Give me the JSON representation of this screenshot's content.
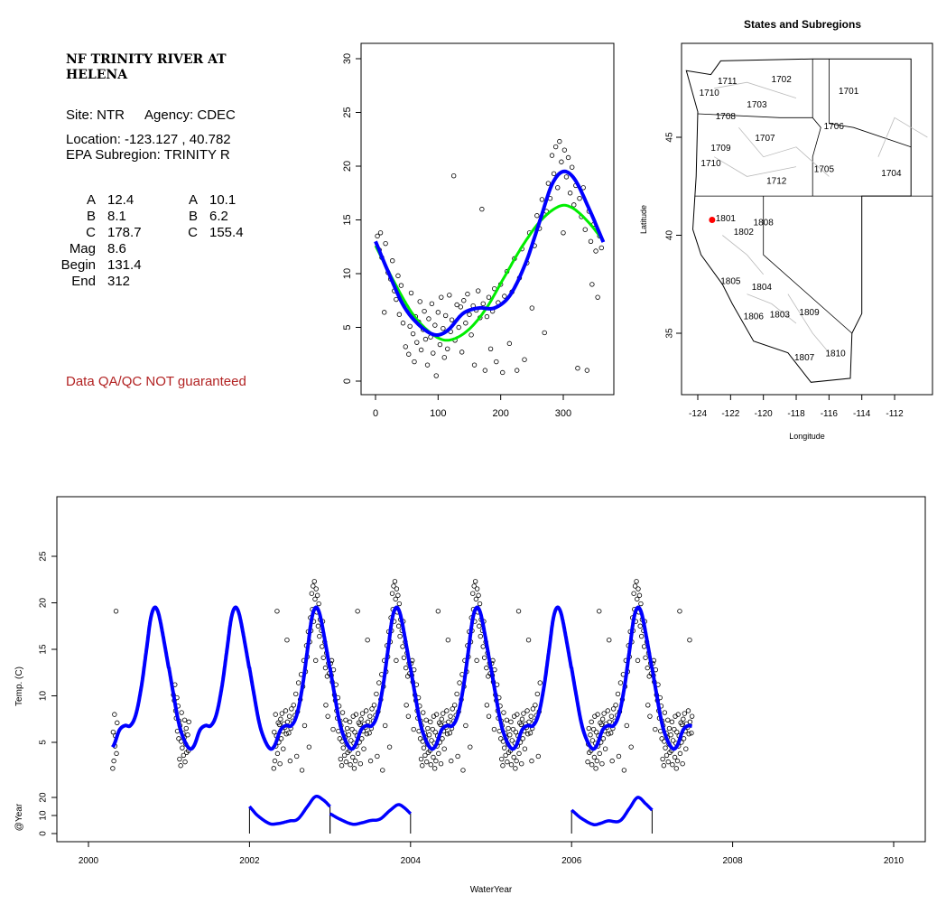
{
  "info": {
    "title_line1": "NF TRINITY RIVER AT",
    "title_line2": "HELENA",
    "site": "Site: NTR",
    "agency": "Agency: CDEC",
    "location": "Location: -123.127 , 40.782",
    "subregion": "EPA Subregion: TRINITY R",
    "params_left": [
      [
        "A",
        "12.4"
      ],
      [
        "B",
        "8.1"
      ],
      [
        "C",
        "178.7"
      ],
      [
        "Mag",
        "8.6"
      ],
      [
        "Begin",
        "131.4"
      ],
      [
        "End",
        "312"
      ]
    ],
    "params_right": [
      [
        "A",
        "10.1"
      ],
      [
        "B",
        "6.2"
      ],
      [
        "C",
        "155.4"
      ]
    ],
    "warning": "Data QA/QC NOT guaranteed",
    "warning_color": "#b22222"
  },
  "chart_data": [
    {
      "type": "scatter",
      "name": "seasonal",
      "xlim": [
        -5,
        370
      ],
      "ylim": [
        -1,
        31
      ],
      "xticks": [
        0,
        100,
        200,
        300
      ],
      "yticks": [
        0,
        5,
        10,
        15,
        20,
        25,
        30
      ],
      "fit_blue": [
        [
          0,
          13
        ],
        [
          20,
          10.2
        ],
        [
          45,
          7
        ],
        [
          70,
          5.2
        ],
        [
          95,
          4.3
        ],
        [
          115,
          4.7
        ],
        [
          140,
          6.3
        ],
        [
          165,
          6.8
        ],
        [
          190,
          6.8
        ],
        [
          215,
          8
        ],
        [
          240,
          11
        ],
        [
          262,
          14.8
        ],
        [
          282,
          18.3
        ],
        [
          300,
          19.5
        ],
        [
          318,
          18.8
        ],
        [
          340,
          16.2
        ],
        [
          365,
          12.8
        ]
      ],
      "fit_green": [
        [
          0,
          12.6
        ],
        [
          30,
          9.2
        ],
        [
          60,
          6.2
        ],
        [
          90,
          4.4
        ],
        [
          115,
          3.8
        ],
        [
          145,
          4.6
        ],
        [
          175,
          6.6
        ],
        [
          205,
          9.6
        ],
        [
          235,
          12.6
        ],
        [
          265,
          15
        ],
        [
          295,
          16.3
        ],
        [
          315,
          16.1
        ],
        [
          340,
          14.8
        ],
        [
          365,
          13
        ]
      ],
      "colors": {
        "blue": "#0000ff",
        "green": "#00ee00"
      },
      "observations": [
        [
          3,
          13.5
        ],
        [
          6,
          12.2
        ],
        [
          8,
          13.8
        ],
        [
          10,
          11.5
        ],
        [
          14,
          6.4
        ],
        [
          16,
          12.8
        ],
        [
          20,
          10.1
        ],
        [
          24,
          9.5
        ],
        [
          27,
          11.2
        ],
        [
          30,
          8.4
        ],
        [
          33,
          7.6
        ],
        [
          36,
          9.8
        ],
        [
          38,
          6.2
        ],
        [
          41,
          8.9
        ],
        [
          44,
          5.4
        ],
        [
          46,
          7.3
        ],
        [
          48,
          3.2
        ],
        [
          50,
          6.8
        ],
        [
          53,
          2.5
        ],
        [
          55,
          5.1
        ],
        [
          57,
          8.2
        ],
        [
          60,
          4.4
        ],
        [
          62,
          1.8
        ],
        [
          64,
          6.0
        ],
        [
          66,
          3.6
        ],
        [
          69,
          5.5
        ],
        [
          71,
          7.4
        ],
        [
          73,
          2.9
        ],
        [
          76,
          4.8
        ],
        [
          78,
          6.5
        ],
        [
          80,
          3.9
        ],
        [
          83,
          1.5
        ],
        [
          85,
          5.8
        ],
        [
          88,
          4.1
        ],
        [
          90,
          7.2
        ],
        [
          92,
          2.6
        ],
        [
          95,
          5.2
        ],
        [
          97,
          0.5
        ],
        [
          100,
          6.4
        ],
        [
          103,
          3.4
        ],
        [
          105,
          7.8
        ],
        [
          108,
          4.9
        ],
        [
          110,
          2.2
        ],
        [
          112,
          6.1
        ],
        [
          115,
          3.0
        ],
        [
          118,
          8.0
        ],
        [
          120,
          4.6
        ],
        [
          122,
          5.7
        ],
        [
          125,
          19.1
        ],
        [
          127,
          3.8
        ],
        [
          130,
          7.1
        ],
        [
          133,
          5.0
        ],
        [
          136,
          6.9
        ],
        [
          138,
          2.7
        ],
        [
          141,
          7.5
        ],
        [
          144,
          5.4
        ],
        [
          147,
          8.1
        ],
        [
          150,
          6.2
        ],
        [
          153,
          4.3
        ],
        [
          156,
          7.0
        ],
        [
          158,
          1.5
        ],
        [
          161,
          6.6
        ],
        [
          164,
          8.4
        ],
        [
          167,
          5.9
        ],
        [
          170,
          16.0
        ],
        [
          172,
          7.2
        ],
        [
          175,
          1.0
        ],
        [
          178,
          6.0
        ],
        [
          181,
          7.8
        ],
        [
          184,
          3.0
        ],
        [
          187,
          6.5
        ],
        [
          190,
          8.6
        ],
        [
          193,
          1.8
        ],
        [
          196,
          7.3
        ],
        [
          200,
          9.0
        ],
        [
          203,
          0.8
        ],
        [
          206,
          7.9
        ],
        [
          210,
          10.2
        ],
        [
          214,
          3.5
        ],
        [
          218,
          8.3
        ],
        [
          222,
          11.4
        ],
        [
          226,
          1.0
        ],
        [
          230,
          9.6
        ],
        [
          234,
          12.3
        ],
        [
          238,
          2.0
        ],
        [
          242,
          11.0
        ],
        [
          246,
          13.8
        ],
        [
          250,
          6.8
        ],
        [
          254,
          12.6
        ],
        [
          258,
          15.4
        ],
        [
          262,
          14.2
        ],
        [
          266,
          16.9
        ],
        [
          270,
          4.5
        ],
        [
          273,
          15.8
        ],
        [
          276,
          18.4
        ],
        [
          279,
          17.0
        ],
        [
          282,
          21.0
        ],
        [
          285,
          19.3
        ],
        [
          288,
          21.8
        ],
        [
          291,
          18.0
        ],
        [
          294,
          22.3
        ],
        [
          297,
          20.4
        ],
        [
          300,
          13.8
        ],
        [
          302,
          21.5
        ],
        [
          305,
          19.0
        ],
        [
          308,
          20.8
        ],
        [
          311,
          17.5
        ],
        [
          314,
          19.9
        ],
        [
          317,
          16.4
        ],
        [
          320,
          18.2
        ],
        [
          323,
          1.2
        ],
        [
          326,
          17.0
        ],
        [
          329,
          15.3
        ],
        [
          332,
          18.0
        ],
        [
          335,
          14.1
        ],
        [
          338,
          1.0
        ],
        [
          341,
          15.8
        ],
        [
          344,
          13.0
        ],
        [
          346,
          9.0
        ],
        [
          349,
          14.6
        ],
        [
          352,
          12.1
        ],
        [
          355,
          7.8
        ],
        [
          358,
          13.5
        ],
        [
          361,
          12.4
        ]
      ]
    },
    {
      "type": "map",
      "name": "States and Subregions",
      "title": "States and Subregions",
      "xlabel": "Longitude",
      "ylabel": "Latitude",
      "xlim": [
        -125,
        -109.7
      ],
      "ylim": [
        32.3,
        50.2
      ],
      "xticks": [
        -124,
        -122,
        -120,
        -118,
        -116,
        -114,
        -112
      ],
      "yticks": [
        35,
        40,
        45
      ],
      "site": {
        "lon": -123.127,
        "lat": 40.782,
        "color": "#ff0000"
      },
      "regions": [
        [
          "1701",
          -114.8,
          47.4
        ],
        [
          "1702",
          -118.9,
          48.0
        ],
        [
          "1711",
          -122.2,
          47.9
        ],
        [
          "1710",
          -123.3,
          47.3
        ],
        [
          "1703",
          -120.4,
          46.7
        ],
        [
          "1708",
          -122.3,
          46.1
        ],
        [
          "1706",
          -115.7,
          45.6
        ],
        [
          "1707",
          -119.9,
          45.0
        ],
        [
          "1709",
          -122.6,
          44.5
        ],
        [
          "1710",
          -123.2,
          43.7
        ],
        [
          "1705",
          -116.3,
          43.4
        ],
        [
          "1704",
          -112.2,
          43.2
        ],
        [
          "1712",
          -119.2,
          42.8
        ],
        [
          "1801",
          -122.3,
          40.9
        ],
        [
          "1808",
          -120.0,
          40.7
        ],
        [
          "1802",
          -121.2,
          40.2
        ],
        [
          "1805",
          -122.0,
          37.7
        ],
        [
          "1804",
          -120.1,
          37.4
        ],
        [
          "1803",
          -119.0,
          36.0
        ],
        [
          "1809",
          -117.2,
          36.1
        ],
        [
          "1806",
          -120.6,
          35.9
        ],
        [
          "1807",
          -117.5,
          33.8
        ],
        [
          "1810",
          -115.6,
          34.0
        ]
      ]
    },
    {
      "type": "line",
      "name": "timeseries",
      "xlabel": "WaterYear",
      "ylabel": "Temp. (C)",
      "ylabel_lower": "@Year",
      "xlim": [
        1999.6,
        2010.4
      ],
      "xticks": [
        2000,
        2002,
        2004,
        2006,
        2008,
        2010
      ],
      "yticks": [
        5,
        10,
        15,
        20,
        25
      ],
      "yticks_lower": [
        0,
        10,
        20
      ],
      "fit_range": [
        2000.3,
        2007.5
      ],
      "observed_years": [
        [
          2000.3,
          2000.36
        ],
        [
          2001.05,
          2001.25
        ],
        [
          2002.3,
          2005.62
        ],
        [
          2006.2,
          2007.5
        ]
      ],
      "annual_fits": [
        {
          "year": 2002,
          "knots": [
            [
              0,
              15
            ],
            [
              0.1,
              10
            ],
            [
              0.25,
              5.5
            ],
            [
              0.35,
              5.5
            ],
            [
              0.5,
              7
            ],
            [
              0.6,
              8
            ],
            [
              0.72,
              15
            ],
            [
              0.82,
              20.5
            ],
            [
              0.92,
              18.5
            ],
            [
              1,
              15
            ]
          ]
        },
        {
          "year": 2003,
          "knots": [
            [
              0,
              11
            ],
            [
              0.12,
              8
            ],
            [
              0.28,
              5.2
            ],
            [
              0.4,
              6
            ],
            [
              0.5,
              7.2
            ],
            [
              0.62,
              8
            ],
            [
              0.75,
              13
            ],
            [
              0.85,
              16
            ],
            [
              0.93,
              14
            ],
            [
              1,
              11
            ]
          ]
        },
        {
          "year": 2006,
          "knots": [
            [
              0,
              13
            ],
            [
              0.12,
              8.5
            ],
            [
              0.27,
              5
            ],
            [
              0.35,
              5.5
            ],
            [
              0.45,
              7
            ],
            [
              0.6,
              7
            ],
            [
              0.72,
              14
            ],
            [
              0.82,
              20
            ],
            [
              0.92,
              16.5
            ],
            [
              1,
              13
            ]
          ]
        }
      ]
    }
  ]
}
